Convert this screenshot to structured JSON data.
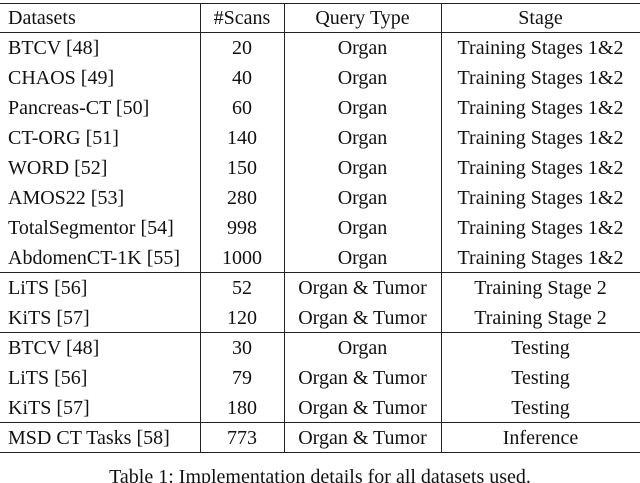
{
  "table": {
    "header": [
      "Datasets",
      "#Scans",
      "Query Type",
      "Stage"
    ],
    "groups": [
      [
        [
          "BTCV [48]",
          20,
          "Organ",
          "Training Stages 1&2"
        ],
        [
          "CHAOS [49]",
          40,
          "Organ",
          "Training Stages 1&2"
        ],
        [
          "Pancreas-CT [50]",
          60,
          "Organ",
          "Training Stages 1&2"
        ],
        [
          "CT-ORG [51]",
          140,
          "Organ",
          "Training Stages 1&2"
        ],
        [
          "WORD [52]",
          150,
          "Organ",
          "Training Stages 1&2"
        ],
        [
          "AMOS22 [53]",
          280,
          "Organ",
          "Training Stages 1&2"
        ],
        [
          "TotalSegmentor [54]",
          998,
          "Organ",
          "Training Stages 1&2"
        ],
        [
          "AbdomenCT-1K [55]",
          1000,
          "Organ",
          "Training Stages 1&2"
        ]
      ],
      [
        [
          "LiTS [56]",
          52,
          "Organ & Tumor",
          "Training Stage 2"
        ],
        [
          "KiTS [57]",
          120,
          "Organ & Tumor",
          "Training Stage 2"
        ]
      ],
      [
        [
          "BTCV [48]",
          30,
          "Organ",
          "Testing"
        ],
        [
          "LiTS [56]",
          79,
          "Organ & Tumor",
          "Testing"
        ],
        [
          "KiTS [57]",
          180,
          "Organ & Tumor",
          "Testing"
        ]
      ],
      [
        [
          "MSD CT Tasks [58]",
          773,
          "Organ & Tumor",
          "Inference"
        ]
      ]
    ]
  },
  "caption": "Table 1: Implementation details for all datasets used."
}
